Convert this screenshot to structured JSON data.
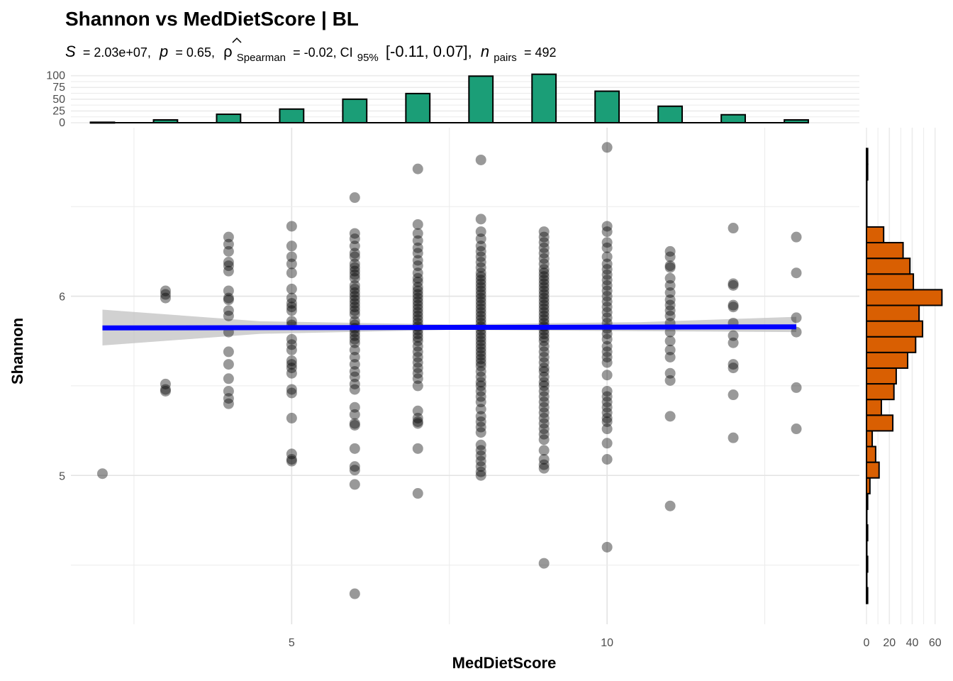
{
  "chart_data": {
    "type": "scatter",
    "title": "Shannon vs MedDietScore | BL",
    "subtitle": {
      "S_label": "S",
      "S_value": "= 2.03e+07,",
      "p_label": "p",
      "p_value": "= 0.65,",
      "rho_symbol": "ρ",
      "rho_sub": "Spearman",
      "rho_value": "= -0.02, CI",
      "ci_sub": "95%",
      "ci_value": "[-0.11, 0.07],",
      "n_label": "n",
      "n_sub": "pairs",
      "n_value": "= 492"
    },
    "xlabel": "MedDietScore",
    "ylabel": "Shannon",
    "xlim": [
      1.5,
      14.0
    ],
    "ylim": [
      4.17,
      6.94
    ],
    "x_ticks": [
      5,
      10
    ],
    "y_ticks": [
      5,
      6
    ],
    "grid": true,
    "point_color": "#000000",
    "point_opacity": 0.4,
    "trend": {
      "color": "#0000ff",
      "x": [
        2,
        13
      ],
      "y": [
        5.823,
        5.829
      ],
      "ci_lower": [
        5.725,
        5.8
      ],
      "ci_upper": [
        5.925,
        5.885
      ],
      "ci_color": "#bebebe"
    },
    "points": [
      {
        "x": 2,
        "y": [
          5.01
        ]
      },
      {
        "x": 3,
        "y": [
          6.03,
          6.01,
          5.99,
          5.51,
          5.48,
          5.47
        ]
      },
      {
        "x": 4,
        "y": [
          6.33,
          6.29,
          6.25,
          6.19,
          6.17,
          6.14,
          6.03,
          5.99,
          5.98,
          5.92,
          5.89,
          5.8,
          5.69,
          5.62,
          5.54,
          5.47,
          5.43,
          5.4
        ]
      },
      {
        "x": 5,
        "y": [
          6.39,
          6.28,
          6.22,
          6.18,
          6.13,
          6.04,
          5.99,
          5.96,
          5.94,
          5.92,
          5.86,
          5.84,
          5.76,
          5.73,
          5.7,
          5.64,
          5.62,
          5.6,
          5.57,
          5.48,
          5.46,
          5.32,
          5.12,
          5.09,
          5.08
        ]
      },
      {
        "x": 6,
        "y": [
          6.55,
          6.35,
          6.32,
          6.28,
          6.24,
          6.22,
          6.18,
          6.16,
          6.14,
          6.12,
          6.1,
          6.06,
          6.04,
          6.02,
          6.0,
          5.98,
          5.96,
          5.94,
          5.92,
          5.9,
          5.86,
          5.84,
          5.82,
          5.8,
          5.78,
          5.76,
          5.74,
          5.7,
          5.66,
          5.62,
          5.58,
          5.55,
          5.51,
          5.48,
          5.38,
          5.34,
          5.29,
          5.28,
          5.15,
          5.05,
          5.03,
          4.95,
          4.34
        ]
      },
      {
        "x": 7,
        "y": [
          6.71,
          6.4,
          6.35,
          6.31,
          6.27,
          6.24,
          6.2,
          6.17,
          6.13,
          6.1,
          6.08,
          6.05,
          6.03,
          6.01,
          5.99,
          5.97,
          5.95,
          5.93,
          5.91,
          5.89,
          5.87,
          5.85,
          5.83,
          5.81,
          5.79,
          5.77,
          5.75,
          5.72,
          5.69,
          5.66,
          5.63,
          5.6,
          5.57,
          5.54,
          5.5,
          5.36,
          5.32,
          5.3,
          5.29,
          5.15,
          4.9
        ]
      },
      {
        "x": 8,
        "y": [
          6.76,
          6.43,
          6.36,
          6.32,
          6.28,
          6.25,
          6.22,
          6.19,
          6.16,
          6.13,
          6.11,
          6.09,
          6.07,
          6.05,
          6.03,
          6.01,
          5.99,
          5.97,
          5.95,
          5.93,
          5.91,
          5.89,
          5.87,
          5.85,
          5.83,
          5.81,
          5.79,
          5.77,
          5.75,
          5.73,
          5.71,
          5.69,
          5.67,
          5.65,
          5.63,
          5.61,
          5.58,
          5.55,
          5.52,
          5.5,
          5.47,
          5.44,
          5.41,
          5.37,
          5.33,
          5.3,
          5.27,
          5.24,
          5.17,
          5.14,
          5.11,
          5.08,
          5.05,
          5.02,
          5.0
        ]
      },
      {
        "x": 9,
        "y": [
          6.36,
          6.33,
          6.3,
          6.27,
          6.24,
          6.21,
          6.18,
          6.15,
          6.13,
          6.11,
          6.09,
          6.07,
          6.05,
          6.03,
          6.01,
          5.99,
          5.97,
          5.95,
          5.93,
          5.91,
          5.89,
          5.87,
          5.85,
          5.83,
          5.81,
          5.79,
          5.77,
          5.75,
          5.72,
          5.69,
          5.66,
          5.63,
          5.6,
          5.58,
          5.55,
          5.52,
          5.5,
          5.47,
          5.44,
          5.41,
          5.38,
          5.35,
          5.32,
          5.29,
          5.26,
          5.23,
          5.2,
          5.14,
          5.09,
          5.06,
          5.04,
          4.51
        ]
      },
      {
        "x": 10,
        "y": [
          6.83,
          6.39,
          6.36,
          6.3,
          6.27,
          6.22,
          6.18,
          6.15,
          6.12,
          6.09,
          6.06,
          6.03,
          6.0,
          5.97,
          5.94,
          5.91,
          5.88,
          5.85,
          5.82,
          5.79,
          5.76,
          5.72,
          5.69,
          5.66,
          5.63,
          5.56,
          5.47,
          5.44,
          5.41,
          5.38,
          5.35,
          5.32,
          5.3,
          5.26,
          5.18,
          5.09,
          4.6
        ]
      },
      {
        "x": 11,
        "y": [
          6.25,
          6.22,
          6.17,
          6.16,
          6.1,
          6.06,
          6.02,
          5.98,
          5.95,
          5.92,
          5.89,
          5.85,
          5.8,
          5.75,
          5.7,
          5.66,
          5.57,
          5.53,
          5.33,
          4.83
        ]
      },
      {
        "x": 12,
        "y": [
          6.38,
          6.07,
          6.06,
          5.95,
          5.94,
          5.85,
          5.78,
          5.74,
          5.62,
          5.6,
          5.45,
          5.21
        ]
      },
      {
        "x": 13,
        "y": [
          6.33,
          6.13,
          5.88,
          5.8,
          5.49,
          5.26
        ]
      }
    ],
    "x_marginal": {
      "fill": "#1b9e77",
      "y_ticks": [
        0,
        25,
        50,
        75,
        100
      ],
      "ylim": [
        0,
        104
      ],
      "categories": [
        2,
        3,
        4,
        5,
        6,
        7,
        8,
        9,
        10,
        11,
        12,
        13
      ],
      "values": [
        1,
        6,
        18,
        29,
        50,
        62,
        99,
        103,
        67,
        35,
        17,
        6
      ]
    },
    "y_marginal": {
      "fill": "#d95f02",
      "x_ticks": [
        0,
        20,
        40,
        60
      ],
      "xlim": [
        0,
        67
      ],
      "bin_width": 0.0875,
      "bin_centers": [
        4.33,
        4.4175,
        4.505,
        4.5925,
        4.68,
        4.7675,
        4.855,
        4.9425,
        5.03,
        5.1175,
        5.205,
        5.2925,
        5.38,
        5.4675,
        5.555,
        5.6425,
        5.73,
        5.8175,
        5.905,
        5.9925,
        6.08,
        6.1675,
        6.255,
        6.3425,
        6.43,
        6.5175,
        6.605,
        6.6925,
        6.78
      ],
      "counts": [
        1,
        0,
        1,
        0,
        1,
        0,
        1,
        3,
        11,
        8,
        5,
        23,
        13,
        24,
        26,
        36,
        43,
        49,
        46,
        66,
        41,
        38,
        32,
        15,
        0,
        0,
        0,
        1,
        1
      ]
    }
  }
}
